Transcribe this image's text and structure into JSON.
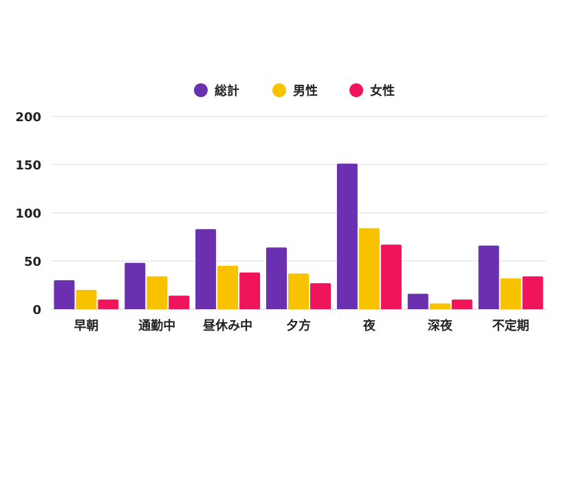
{
  "chart_data": {
    "type": "bar",
    "title": "",
    "xlabel": "",
    "ylabel": "",
    "ylim": [
      0,
      200
    ],
    "yticks": [
      0,
      50,
      100,
      150,
      200
    ],
    "grid": true,
    "legend_position": "top-center",
    "categories": [
      "早朝",
      "通勤中",
      "昼休み中",
      "夕方",
      "夜",
      "深夜",
      "不定期"
    ],
    "series": [
      {
        "name": "総計",
        "color": "#6a30b0",
        "values": [
          30,
          48,
          83,
          64,
          151,
          16,
          66
        ]
      },
      {
        "name": "男性",
        "color": "#f9c200",
        "values": [
          20,
          34,
          45,
          37,
          84,
          6,
          32
        ]
      },
      {
        "name": "女性",
        "color": "#f0145a",
        "values": [
          10,
          14,
          38,
          27,
          67,
          10,
          34
        ]
      }
    ]
  }
}
